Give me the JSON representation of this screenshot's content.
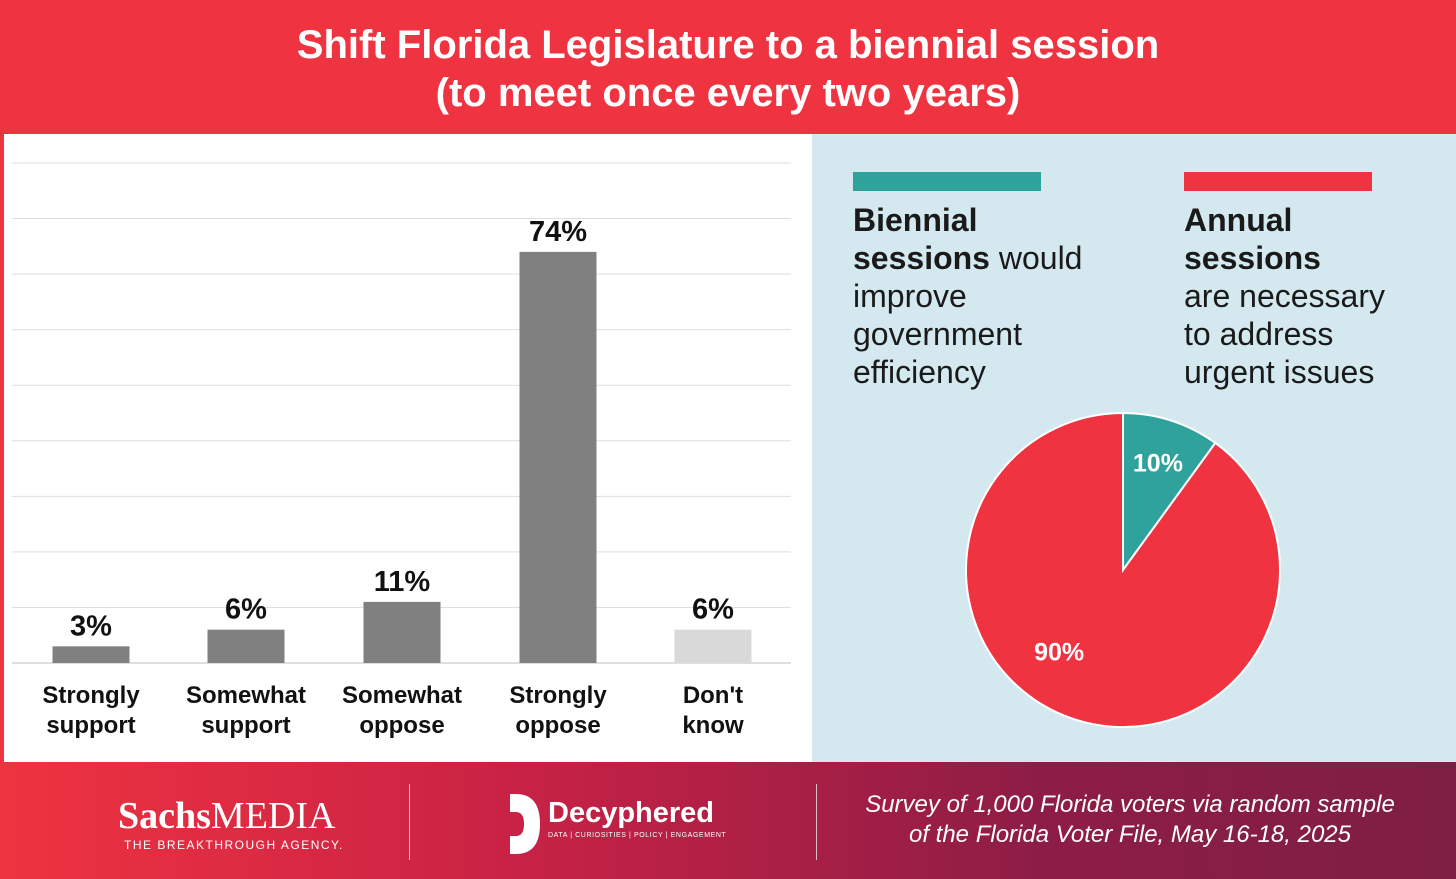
{
  "header": {
    "title_line1": "Shift Florida Legislature to a biennial session",
    "title_line2": "(to meet once every two years)"
  },
  "colors": {
    "red": "#ef3340",
    "teal": "#2fa39b",
    "bar": "#808080",
    "bar_dontknow": "#d9d9d9",
    "panel_bg": "#d4e9ef"
  },
  "legend": {
    "biennial": {
      "bold": "Biennial sessions",
      "rest": "would improve government efficiency",
      "line1": "Biennial",
      "line2_bold": "sessions",
      "line2_rest": " would",
      "line3": "improve",
      "line4": "government",
      "line5": "efficiency"
    },
    "annual": {
      "bold": "Annual sessions",
      "rest": "are necessary to address urgent issues",
      "line1": "Annual",
      "line2": "sessions",
      "line3": "are necessary",
      "line4": "to address",
      "line5": "urgent issues"
    }
  },
  "chart_data": [
    {
      "type": "bar",
      "categories": [
        "Strongly support",
        "Somewhat support",
        "Somewhat oppose",
        "Strongly oppose",
        "Don't know"
      ],
      "category_lines": [
        [
          "Strongly",
          "support"
        ],
        [
          "Somewhat",
          "support"
        ],
        [
          "Somewhat",
          "oppose"
        ],
        [
          "Strongly",
          "oppose"
        ],
        [
          "Don't",
          "know"
        ]
      ],
      "values": [
        3,
        6,
        11,
        74,
        6
      ],
      "value_labels": [
        "3%",
        "6%",
        "11%",
        "74%",
        "6%"
      ],
      "ylim": [
        0,
        90
      ],
      "grid": true,
      "title": "",
      "xlabel": "",
      "ylabel": ""
    },
    {
      "type": "pie",
      "labels": [
        "Biennial sessions would improve government efficiency",
        "Annual sessions are necessary to address urgent issues"
      ],
      "values": [
        10,
        90
      ],
      "value_labels": [
        "10%",
        "90%"
      ]
    }
  ],
  "footer": {
    "brand1_name_bold": "Sachs",
    "brand1_name_rest": "MEDIA",
    "brand1_tagline": "THE BREAKTHROUGH AGENCY.",
    "brand2_name": "Decyphered",
    "brand2_tagline": "DATA | CURIOSITIES | POLICY | ENGAGEMENT",
    "survey_line1": "Survey of 1,000 Florida voters via random sample",
    "survey_line2": "of the Florida Voter File, May 16-18, 2025"
  }
}
